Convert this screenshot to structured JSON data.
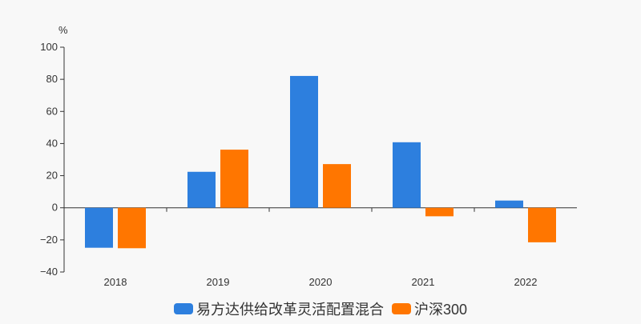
{
  "chart_data": {
    "type": "bar",
    "unit_label": "%",
    "categories": [
      "2018",
      "2019",
      "2020",
      "2021",
      "2022"
    ],
    "series": [
      {
        "name": "易方达供给改革灵活配置混合",
        "color": "#2d7fde",
        "values": [
          -24.9,
          22.4,
          82.1,
          40.8,
          4.5
        ]
      },
      {
        "name": "沪深300",
        "color": "#ff7600",
        "values": [
          -25.2,
          36.2,
          27.2,
          -5.3,
          -21.5
        ]
      }
    ],
    "ylim": [
      -40,
      100
    ],
    "yticks": [
      100,
      80,
      60,
      40,
      20,
      0,
      -20,
      -40
    ],
    "grid": false,
    "legend_position": "bottom"
  }
}
